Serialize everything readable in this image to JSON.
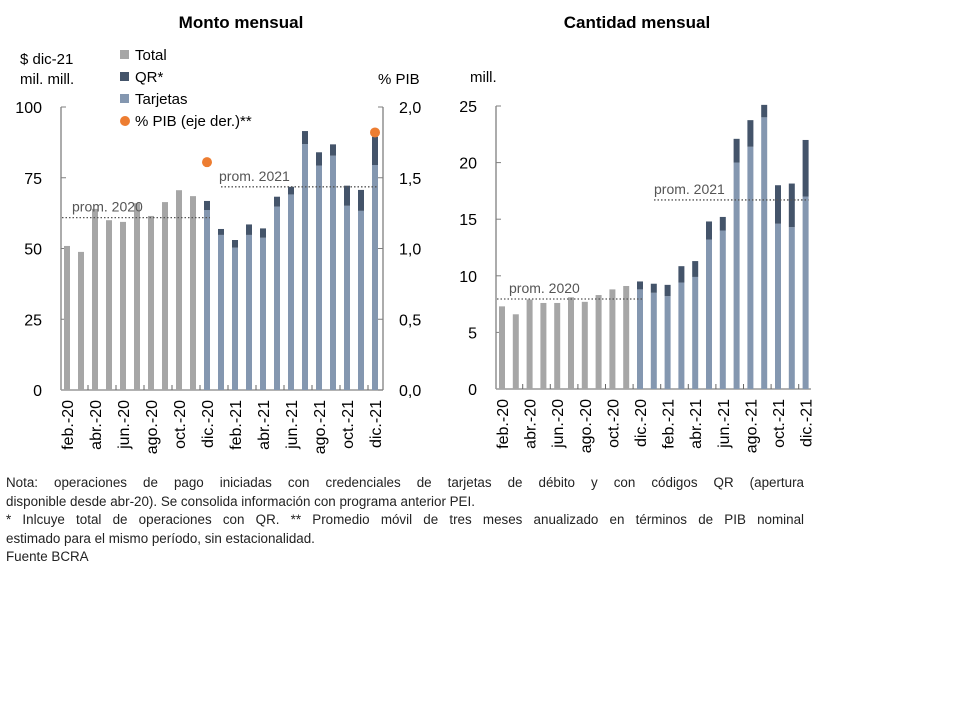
{
  "chart_data": [
    {
      "type": "bar",
      "stacked": true,
      "title": "Monto mensual",
      "ylabel": "$ dic-21\nmil. mill.",
      "ylabel_lines": [
        "$ dic-21",
        "mil. mill."
      ],
      "y2label": "% PIB",
      "ylim": [
        0,
        100
      ],
      "y2lim": [
        0,
        2.0
      ],
      "yticks": [
        "0",
        "25",
        "50",
        "75",
        "100"
      ],
      "yticks_values": [
        0,
        25,
        50,
        75,
        100
      ],
      "y2ticks": [
        "0,0",
        "0,5",
        "1,0",
        "1,5",
        "2,0"
      ],
      "y2ticks_values": [
        0,
        0.5,
        1.0,
        1.5,
        2.0
      ],
      "grid": false,
      "legend_position": "top-left",
      "legend": [
        {
          "label": "Total",
          "color": "#A6A6A6",
          "shape": "square"
        },
        {
          "label": "QR*",
          "color": "#44546A",
          "shape": "square"
        },
        {
          "label": "Tarjetas",
          "color": "#8497B0",
          "shape": "square"
        },
        {
          "label": "% PIB (eje der.)**",
          "color": "#ED7D31",
          "shape": "circle"
        }
      ],
      "categories": [
        "feb.-20",
        "mar.-20",
        "abr.-20",
        "may.-20",
        "jun.-20",
        "jul.-20",
        "ago.-20",
        "sep.-20",
        "oct.-20",
        "nov.-20",
        "dic.-20",
        "ene.-21",
        "feb.-21",
        "mar.-21",
        "abr.-21",
        "may.-21",
        "jun.-21",
        "jul.-21",
        "ago.-21",
        "sep.-21",
        "oct.-21",
        "nov.-21",
        "dic.-21"
      ],
      "xtick_labels": [
        "feb.-20",
        "abr.-20",
        "jun.-20",
        "ago.-20",
        "oct.-20",
        "dic.-20",
        "feb.-21",
        "abr.-21",
        "jun.-21",
        "ago.-21",
        "oct.-21",
        "dic.-21"
      ],
      "series": [
        {
          "name": "Total",
          "color": "#A6A6A6",
          "values": [
            50.9,
            48.8,
            64.0,
            60.0,
            59.4,
            66.0,
            61.5,
            66.4,
            70.6,
            68.5,
            null,
            null,
            null,
            null,
            null,
            null,
            null,
            null,
            null,
            null,
            null,
            null,
            null
          ]
        },
        {
          "name": "Tarjetas",
          "color": "#8497B0",
          "values": [
            null,
            null,
            null,
            null,
            null,
            null,
            null,
            null,
            null,
            null,
            63.6,
            54.8,
            50.3,
            54.8,
            53.8,
            64.8,
            69.1,
            86.9,
            79.3,
            82.8,
            65.1,
            63.3,
            79.5
          ]
        },
        {
          "name": "QR*",
          "color": "#44546A",
          "values": [
            null,
            null,
            null,
            null,
            null,
            null,
            null,
            null,
            null,
            null,
            3.2,
            2.1,
            2.7,
            3.7,
            3.3,
            3.5,
            2.7,
            4.6,
            4.7,
            4.0,
            7.1,
            7.4,
            10.0
          ]
        },
        {
          "name": "% PIB (eje der.)**",
          "color": "#ED7D31",
          "axis": "right",
          "type": "scatter",
          "values": [
            null,
            null,
            null,
            null,
            null,
            null,
            null,
            null,
            null,
            null,
            1.61,
            null,
            null,
            null,
            null,
            null,
            null,
            null,
            null,
            null,
            null,
            null,
            1.82
          ]
        }
      ],
      "reference_lines": [
        {
          "label": "prom. 2020",
          "value": 60.9,
          "from": "feb.-20",
          "to": "dic.-20"
        },
        {
          "label": "prom. 2021",
          "value": 71.8,
          "from": "dic.-20",
          "to": "dic.-21"
        }
      ]
    },
    {
      "type": "bar",
      "stacked": true,
      "title": "Cantidad mensual",
      "ylabel": "mill.",
      "ylim": [
        0,
        25
      ],
      "yticks": [
        "0",
        "5",
        "10",
        "15",
        "20",
        "25"
      ],
      "yticks_values": [
        0,
        5,
        10,
        15,
        20,
        25
      ],
      "grid": false,
      "categories": [
        "feb.-20",
        "mar.-20",
        "abr.-20",
        "may.-20",
        "jun.-20",
        "jul.-20",
        "ago.-20",
        "sep.-20",
        "oct.-20",
        "nov.-20",
        "dic.-20",
        "ene.-21",
        "feb.-21",
        "mar.-21",
        "abr.-21",
        "may.-21",
        "jun.-21",
        "jul.-21",
        "ago.-21",
        "sep.-21",
        "oct.-21",
        "nov.-21",
        "dic.-21"
      ],
      "xtick_labels": [
        "feb.-20",
        "abr.-20",
        "jun.-20",
        "ago.-20",
        "oct.-20",
        "dic.-20",
        "feb.-21",
        "abr.-21",
        "jun.-21",
        "ago.-21",
        "oct.-21",
        "dic.-21"
      ],
      "series": [
        {
          "name": "Total",
          "color": "#A6A6A6",
          "values": [
            7.3,
            6.6,
            7.9,
            7.6,
            7.6,
            8.1,
            7.7,
            8.3,
            8.8,
            9.1,
            null,
            null,
            null,
            null,
            null,
            null,
            null,
            null,
            null,
            null,
            null,
            null,
            null
          ]
        },
        {
          "name": "Tarjetas",
          "color": "#8497B0",
          "values": [
            null,
            null,
            null,
            null,
            null,
            null,
            null,
            null,
            null,
            null,
            8.8,
            8.5,
            8.2,
            9.4,
            9.9,
            13.2,
            14.0,
            20.0,
            21.4,
            24.0,
            14.6,
            14.3,
            17.0
          ]
        },
        {
          "name": "QR*",
          "color": "#44546A",
          "values": [
            null,
            null,
            null,
            null,
            null,
            null,
            null,
            null,
            null,
            null,
            0.7,
            0.8,
            1.0,
            1.45,
            1.4,
            1.6,
            1.2,
            2.1,
            2.35,
            1.1,
            3.4,
            3.85,
            5.0
          ]
        }
      ],
      "reference_lines": [
        {
          "label": "prom. 2020",
          "value": 7.95,
          "from": "feb.-20",
          "to": "dic.-20"
        },
        {
          "label": "prom. 2021",
          "value": 16.7,
          "from": "dic.-20",
          "to": "dic.-21"
        }
      ]
    }
  ],
  "notes": {
    "line1": "Nota: operaciones de pago iniciadas con credenciales de tarjetas de débito y con códigos QR (apertura",
    "line2": "disponible desde abr-20). Se consolida información con programa anterior PEI.",
    "line3": "* Inlcuye total de operaciones con QR. ** Promedio móvil de tres meses anualizado en términos de PIB nominal",
    "line4": "estimado para el mismo período, sin estacionalidad.",
    "source": "Fuente BCRA"
  }
}
